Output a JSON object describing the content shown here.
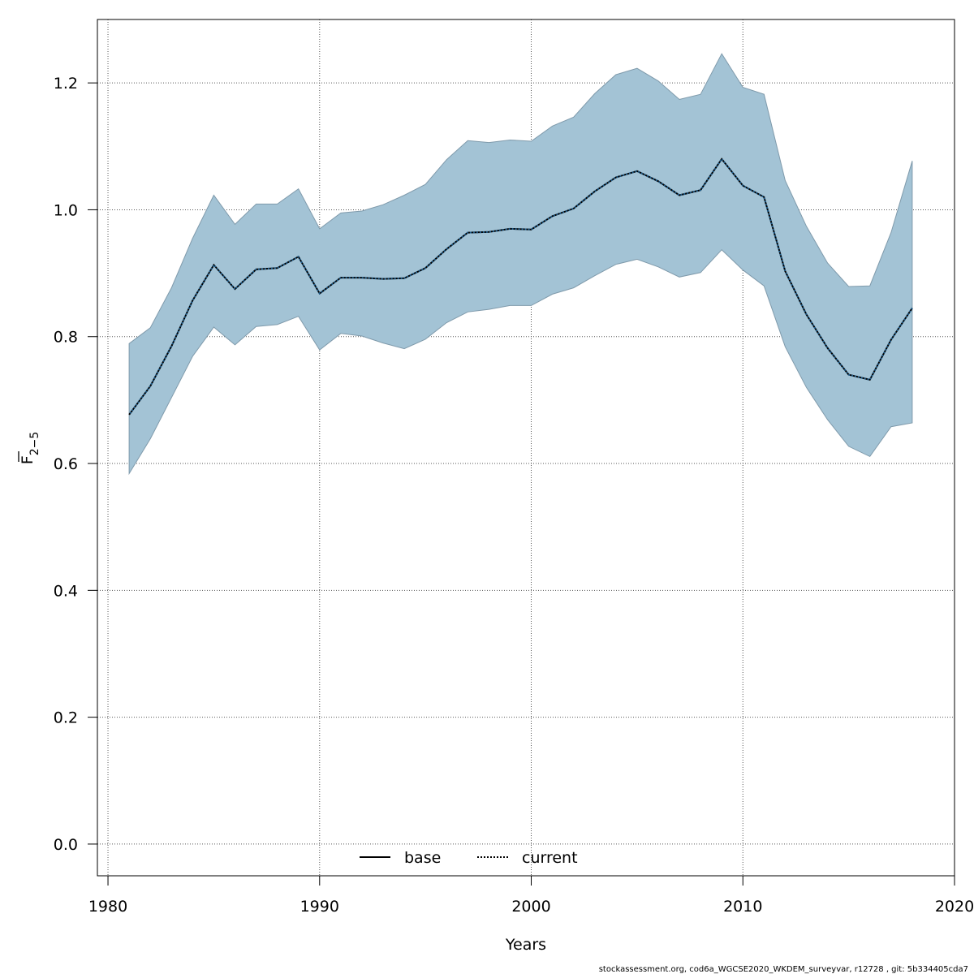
{
  "chart_data": {
    "type": "area",
    "xlabel": "Years",
    "ylabel": {
      "base": "F",
      "subscript": "2−5"
    },
    "xlim": [
      1979.5,
      2020
    ],
    "ylim": [
      -0.05,
      1.3
    ],
    "x_ticks": [
      1980,
      1990,
      2000,
      2010,
      2020
    ],
    "x_tick_labels": [
      "1980",
      "1990",
      "2000",
      "2010",
      "2020"
    ],
    "y_ticks": [
      0.0,
      0.2,
      0.4,
      0.6,
      0.8,
      1.0,
      1.2
    ],
    "y_tick_labels": [
      "0.0",
      "0.2",
      "0.4",
      "0.6",
      "0.8",
      "1.0",
      "1.2"
    ],
    "grid": true,
    "legend_position": "bottom-center",
    "legend": [
      {
        "label": "base",
        "style": "solid"
      },
      {
        "label": "current",
        "style": "dotted"
      }
    ],
    "x": [
      1981,
      1982,
      1983,
      1984,
      1985,
      1986,
      1987,
      1988,
      1989,
      1990,
      1991,
      1992,
      1993,
      1994,
      1995,
      1996,
      1997,
      1998,
      1999,
      2000,
      2001,
      2002,
      2003,
      2004,
      2005,
      2006,
      2007,
      2008,
      2009,
      2010,
      2011,
      2012,
      2013,
      2014,
      2015,
      2016,
      2017,
      2018
    ],
    "series": [
      {
        "name": "base",
        "color": "#000000",
        "values": [
          0.677,
          0.722,
          0.785,
          0.857,
          0.913,
          0.875,
          0.906,
          0.908,
          0.926,
          0.868,
          0.893,
          0.893,
          0.891,
          0.892,
          0.908,
          0.938,
          0.964,
          0.965,
          0.97,
          0.969,
          0.99,
          1.002,
          1.029,
          1.051,
          1.061,
          1.045,
          1.023,
          1.031,
          1.08,
          1.038,
          1.02,
          0.903,
          0.835,
          0.782,
          0.74,
          0.732,
          0.795,
          0.845
        ]
      },
      {
        "name": "current",
        "color": "#000000",
        "values": [
          0.677,
          0.722,
          0.785,
          0.857,
          0.913,
          0.875,
          0.906,
          0.908,
          0.926,
          0.868,
          0.893,
          0.893,
          0.891,
          0.892,
          0.908,
          0.938,
          0.964,
          0.965,
          0.97,
          0.969,
          0.99,
          1.002,
          1.029,
          1.051,
          1.061,
          1.045,
          1.023,
          1.031,
          1.08,
          1.038,
          1.02,
          0.903,
          0.835,
          0.782,
          0.74,
          0.732,
          0.795,
          0.845
        ]
      }
    ],
    "band": {
      "color": "#a3c3d5",
      "edge_color": "#7f9aab",
      "upper": [
        0.789,
        0.814,
        0.877,
        0.955,
        1.023,
        0.977,
        1.009,
        1.009,
        1.033,
        0.97,
        0.995,
        0.998,
        1.008,
        1.023,
        1.04,
        1.079,
        1.109,
        1.106,
        1.11,
        1.108,
        1.132,
        1.146,
        1.183,
        1.213,
        1.223,
        1.203,
        1.174,
        1.182,
        1.246,
        1.193,
        1.182,
        1.046,
        0.974,
        0.916,
        0.879,
        0.88,
        0.964,
        1.077
      ],
      "lower": [
        0.584,
        0.639,
        0.704,
        0.769,
        0.815,
        0.787,
        0.816,
        0.819,
        0.832,
        0.779,
        0.805,
        0.801,
        0.79,
        0.781,
        0.796,
        0.822,
        0.839,
        0.843,
        0.849,
        0.849,
        0.867,
        0.877,
        0.896,
        0.914,
        0.922,
        0.91,
        0.894,
        0.901,
        0.937,
        0.905,
        0.88,
        0.784,
        0.72,
        0.669,
        0.627,
        0.611,
        0.658,
        0.664
      ]
    }
  },
  "footer": {
    "note": "stockassessment.org, cod6a_WGCSE2020_WKDEM_surveyvar, r12728 , git: 5b334405cda7"
  }
}
